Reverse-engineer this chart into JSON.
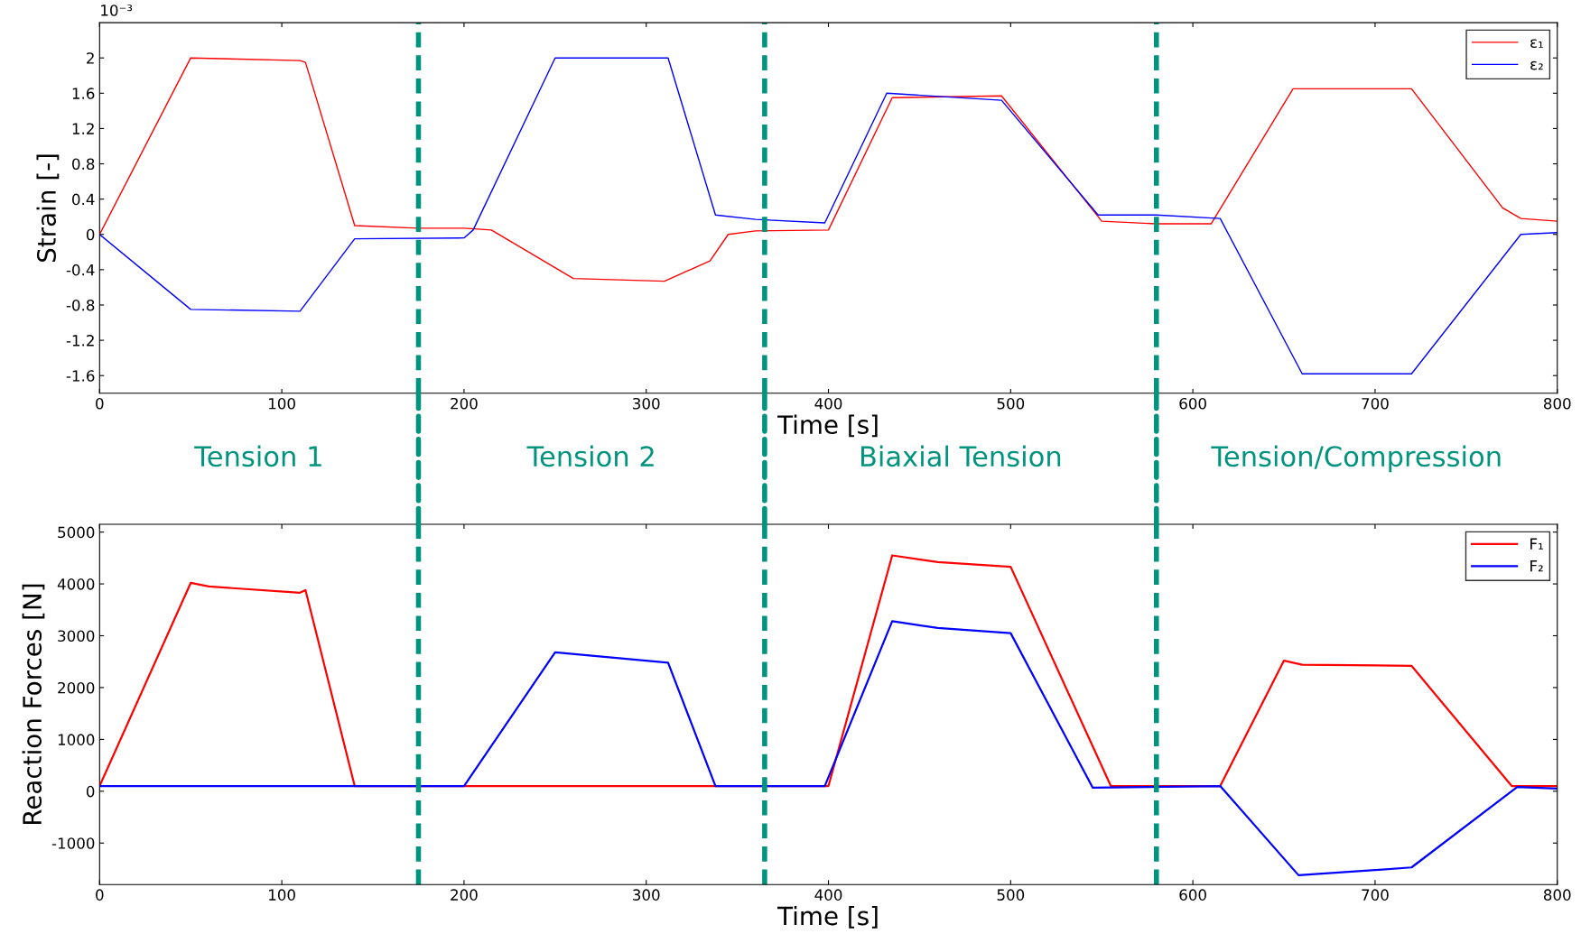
{
  "chart_data": [
    {
      "type": "line",
      "ylabel": "Strain [-]",
      "xlabel": "Time [s]",
      "annotations": [
        "10⁻³",
        "Tension 1",
        "Tension 2",
        "Biaxial Tension",
        "Tension/Compression"
      ],
      "xlim": [
        0,
        800
      ],
      "xticks": [
        0,
        100,
        200,
        300,
        400,
        500,
        600,
        700,
        800
      ],
      "ylim": [
        -1.8,
        2.4
      ],
      "yticks": [
        -1.6,
        -1.2,
        -0.8,
        -0.4,
        0,
        0.4,
        0.8,
        1.2,
        1.6,
        2
      ],
      "grid": false,
      "legend": "top right",
      "line_style": "solid",
      "marker": "none",
      "ref_lines": [
        {
          "axis": "x",
          "value": 175,
          "color": "#00947e",
          "line_style": "dashed"
        },
        {
          "axis": "x",
          "value": 365,
          "color": "#00947e",
          "line_style": "dashed"
        },
        {
          "axis": "x",
          "value": 580,
          "color": "#00947e",
          "line_style": "dashed"
        }
      ],
      "series": [
        {
          "name": "ε₁",
          "color": "#ff0000",
          "x": [
            0,
            50,
            110,
            113,
            140,
            175,
            200,
            215,
            260,
            310,
            335,
            345,
            360,
            400,
            435,
            495,
            550,
            580,
            610,
            655,
            720,
            770,
            780,
            800
          ],
          "values": [
            0,
            2.0,
            1.97,
            1.95,
            0.1,
            0.07,
            0.07,
            0.05,
            -0.5,
            -0.53,
            -0.3,
            0.0,
            0.04,
            0.05,
            1.55,
            1.57,
            0.15,
            0.12,
            0.12,
            1.65,
            1.65,
            0.3,
            0.18,
            0.15
          ]
        },
        {
          "name": "ε₂",
          "color": "#0000ff",
          "x": [
            0,
            50,
            110,
            140,
            200,
            205,
            250,
            312,
            338,
            360,
            398,
            432,
            495,
            548,
            580,
            615,
            660,
            720,
            780,
            800
          ],
          "values": [
            0,
            -0.85,
            -0.87,
            -0.05,
            -0.04,
            0.05,
            2.0,
            2.0,
            0.22,
            0.17,
            0.13,
            1.6,
            1.52,
            0.22,
            0.22,
            0.18,
            -1.58,
            -1.58,
            0.0,
            0.02
          ]
        }
      ]
    },
    {
      "type": "line",
      "ylabel": "Reaction Forces [N]",
      "xlabel": "Time [s]",
      "xlim": [
        0,
        800
      ],
      "xticks": [
        0,
        100,
        200,
        300,
        400,
        500,
        600,
        700,
        800
      ],
      "ylim": [
        -1800,
        5150
      ],
      "yticks": [
        -1000,
        0,
        1000,
        2000,
        3000,
        4000,
        5000
      ],
      "grid": false,
      "legend": "top right",
      "line_style": "solid",
      "marker": "none",
      "ref_lines": [
        {
          "axis": "x",
          "value": 175,
          "color": "#00947e",
          "line_style": "dashed"
        },
        {
          "axis": "x",
          "value": 365,
          "color": "#00947e",
          "line_style": "dashed"
        },
        {
          "axis": "x",
          "value": 580,
          "color": "#00947e",
          "line_style": "dashed"
        }
      ],
      "series": [
        {
          "name": "F₁",
          "color": "#ff0000",
          "x": [
            0,
            50,
            60,
            110,
            113,
            140,
            400,
            435,
            460,
            500,
            555,
            615,
            650,
            660,
            720,
            775,
            800
          ],
          "values": [
            100,
            4020,
            3950,
            3830,
            3880,
            100,
            100,
            4550,
            4420,
            4330,
            100,
            100,
            2520,
            2440,
            2420,
            100,
            100
          ]
        },
        {
          "name": "F₂",
          "color": "#0000ff",
          "x": [
            0,
            200,
            250,
            312,
            338,
            398,
            435,
            460,
            500,
            545,
            615,
            658,
            700,
            720,
            778,
            800
          ],
          "values": [
            100,
            100,
            2680,
            2480,
            100,
            100,
            3280,
            3150,
            3050,
            70,
            100,
            -1620,
            -1520,
            -1470,
            80,
            50
          ]
        }
      ]
    }
  ]
}
